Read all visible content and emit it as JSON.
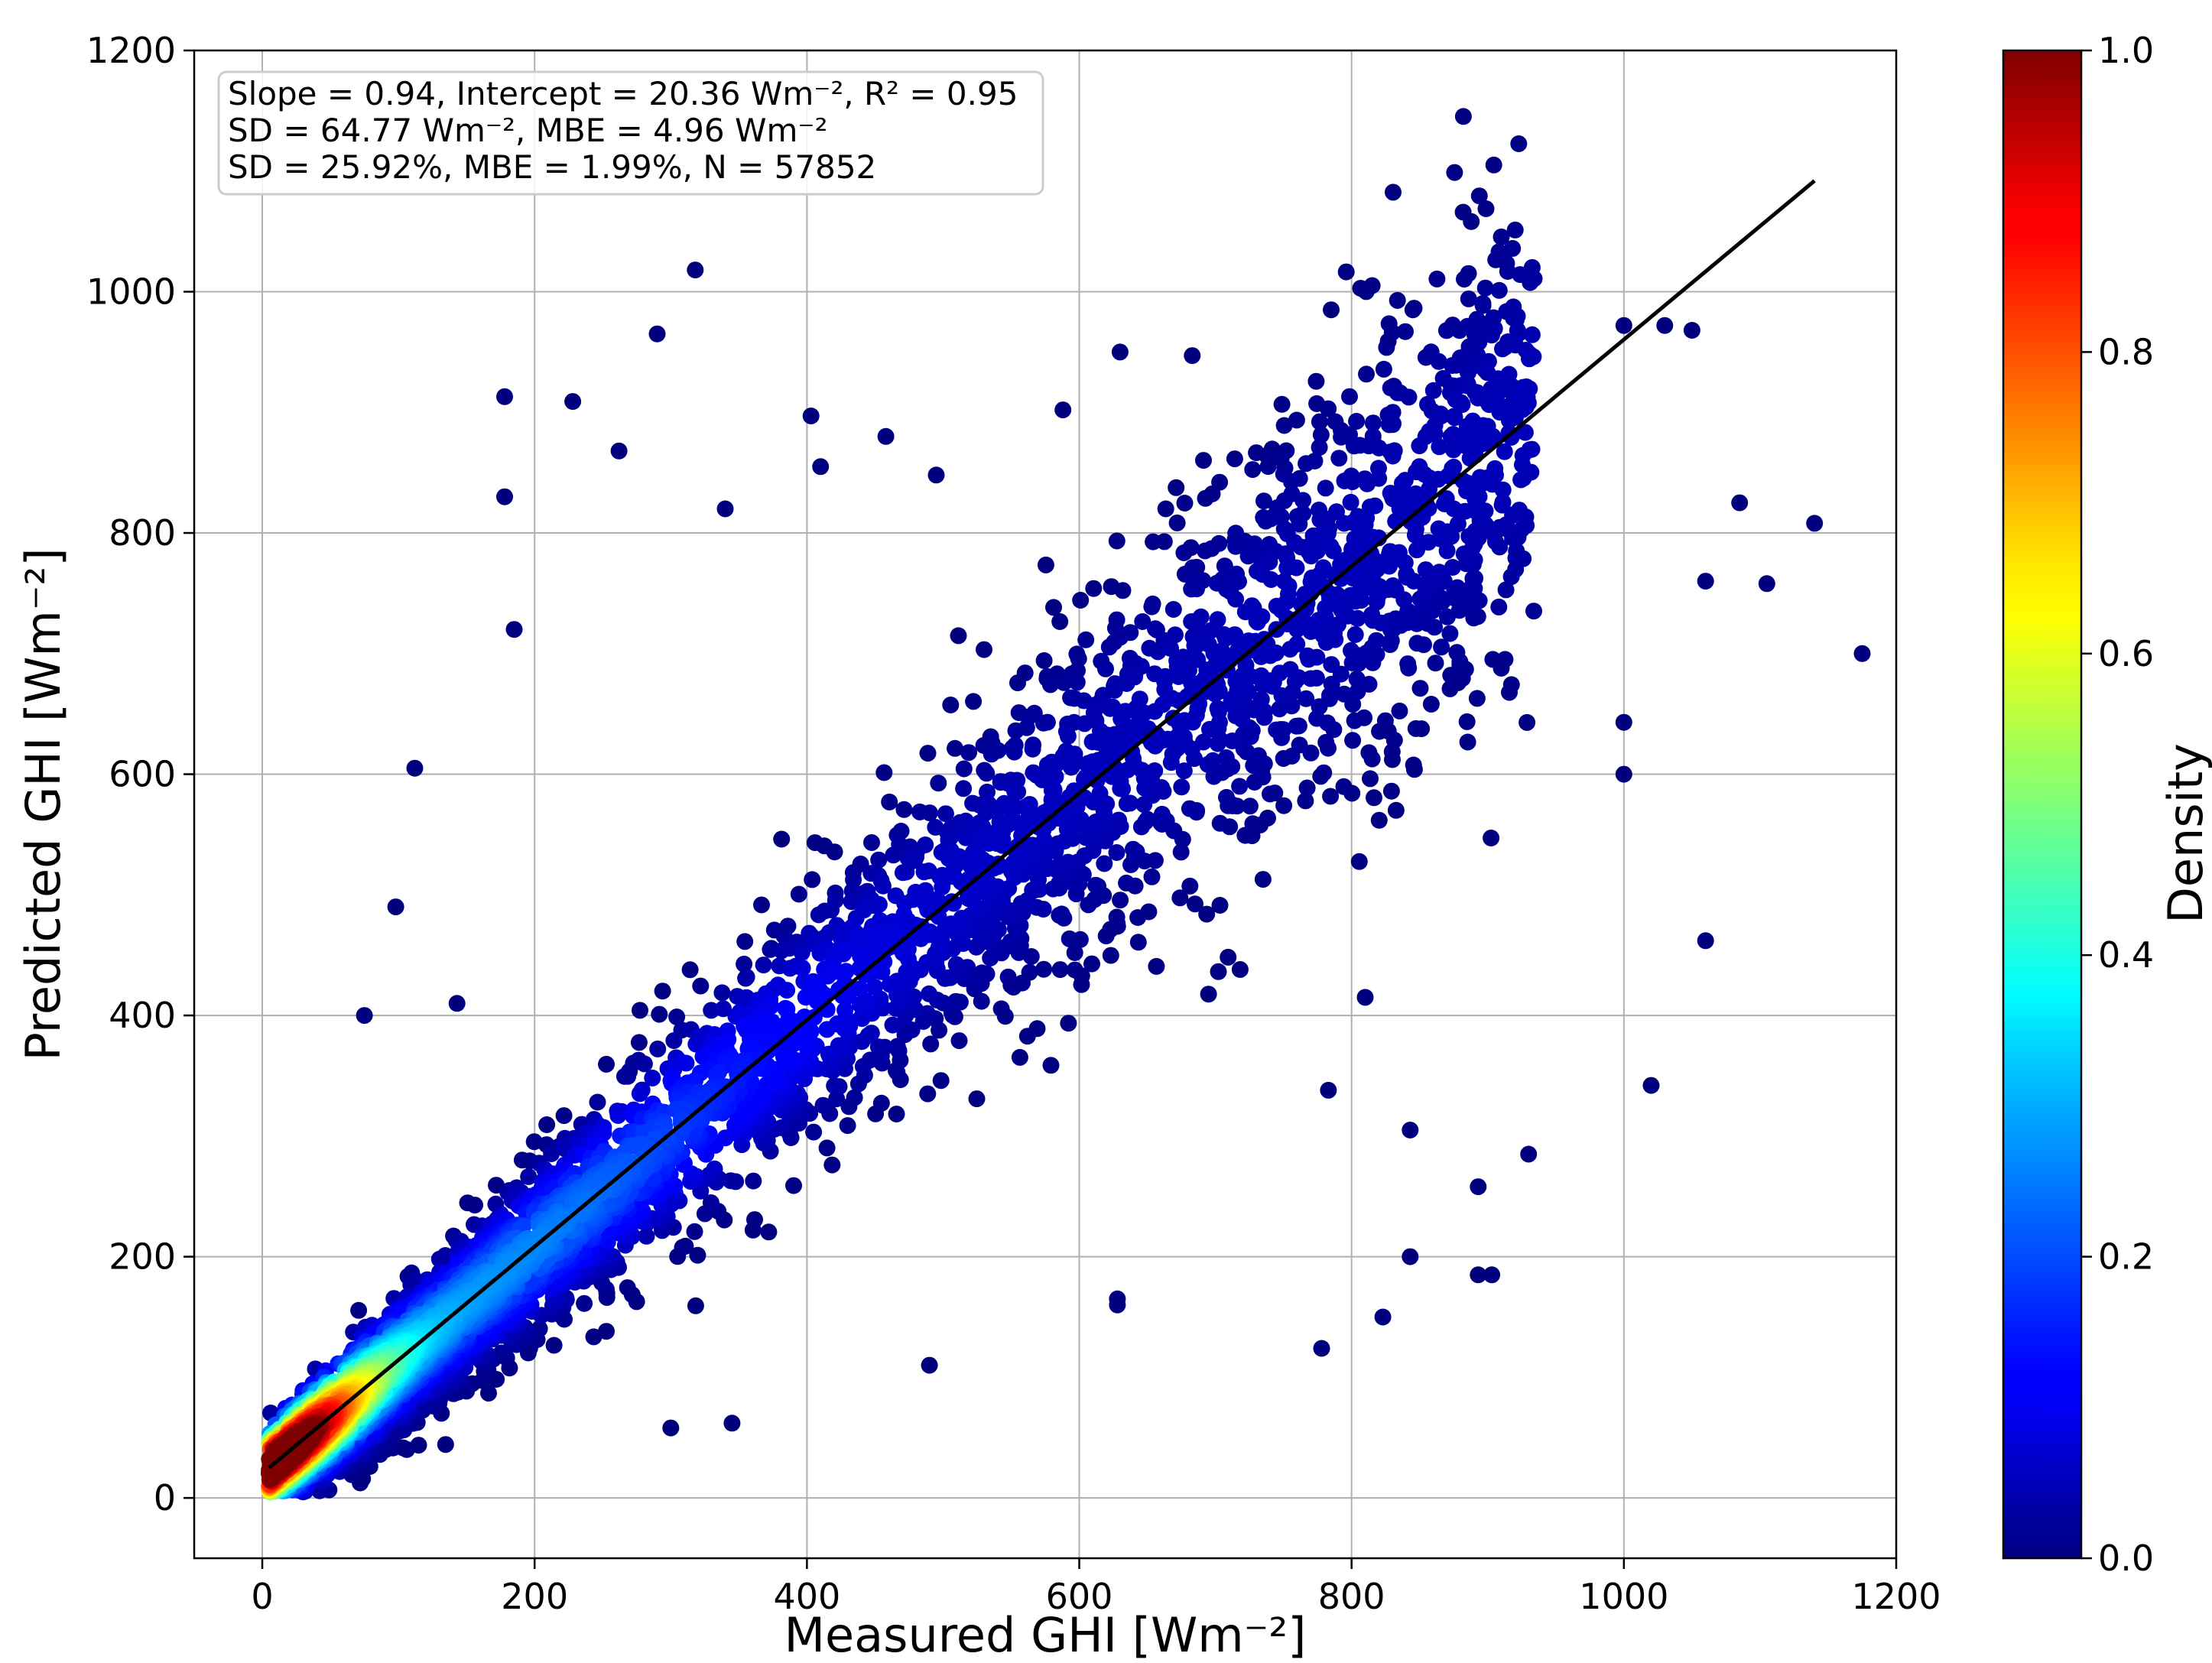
{
  "chart_data": {
    "type": "scatter",
    "xlabel": "Measured GHI [Wm⁻²]",
    "ylabel": "Predicted GHI [Wm⁻²]",
    "xlim": [
      -50,
      1200
    ],
    "ylim": [
      -50,
      1200
    ],
    "x_ticks": [
      0,
      200,
      400,
      600,
      800,
      1000,
      1200
    ],
    "y_ticks": [
      0,
      200,
      400,
      600,
      800,
      1000,
      1200
    ],
    "grid": true,
    "stats_box": {
      "placement": "top-left",
      "lines": [
        "Slope = 0.94, Intercept = 20.36 Wm⁻², R² = 0.95",
        "SD = 64.77 Wm⁻², MBE  = 4.96 Wm⁻²",
        "SD = 25.92%, MBE  = 1.99%, N = 57852"
      ]
    },
    "regression_line": {
      "slope": 0.94,
      "intercept": 20.36,
      "x_range": [
        5,
        1140
      ],
      "color": "#000000"
    },
    "density_colormap": "jet",
    "colorbar": {
      "label": "Density",
      "min": 0.0,
      "max": 1.0,
      "ticks": [
        0.0,
        0.2,
        0.4,
        0.6,
        0.8,
        1.0
      ],
      "tick_labels": [
        "0.0",
        "0.2",
        "0.4",
        "0.6",
        "0.8",
        "1.0"
      ]
    },
    "n_points": 57852,
    "sample_points": [
      [
        318,
        1018
      ],
      [
        290,
        965
      ],
      [
        178,
        913
      ],
      [
        228,
        909
      ],
      [
        178,
        830
      ],
      [
        262,
        868
      ],
      [
        630,
        950
      ],
      [
        588,
        902
      ],
      [
        683,
        947
      ],
      [
        785,
        985
      ],
      [
        845,
        985
      ],
      [
        1000,
        972
      ],
      [
        1050,
        968
      ],
      [
        1030,
        972
      ],
      [
        1140,
        808
      ],
      [
        1105,
        758
      ],
      [
        1060,
        462
      ],
      [
        1020,
        342
      ],
      [
        1000,
        643
      ],
      [
        1000,
        600
      ],
      [
        893,
        185
      ],
      [
        903,
        185
      ],
      [
        843,
        200
      ],
      [
        778,
        124
      ],
      [
        823,
        150
      ],
      [
        628,
        165
      ],
      [
        628,
        160
      ],
      [
        490,
        110
      ],
      [
        340,
        820
      ],
      [
        410,
        855
      ],
      [
        403,
        897
      ],
      [
        458,
        880
      ],
      [
        495,
        848
      ],
      [
        185,
        720
      ],
      [
        112,
        605
      ],
      [
        98,
        490
      ],
      [
        75,
        400
      ],
      [
        143,
        410
      ],
      [
        345,
        62
      ],
      [
        300,
        58
      ],
      [
        930,
        285
      ],
      [
        893,
        258
      ],
      [
        843,
        305
      ],
      [
        783,
        338
      ],
      [
        810,
        415
      ],
      [
        1060,
        760
      ],
      [
        1085,
        825
      ],
      [
        1175,
        700
      ]
    ]
  }
}
